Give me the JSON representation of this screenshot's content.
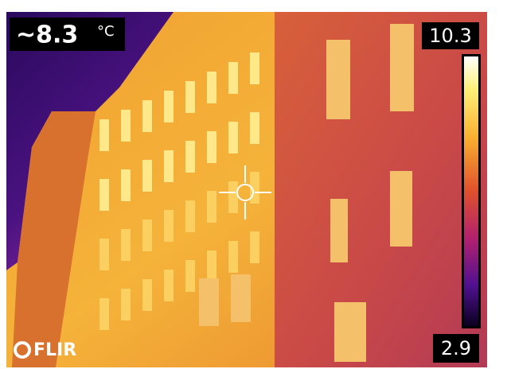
{
  "spot_reading": {
    "value": "~8.3",
    "unit": "°C"
  },
  "scale": {
    "max": 10.3,
    "min": 2.9
  },
  "logo": "FLIR"
}
